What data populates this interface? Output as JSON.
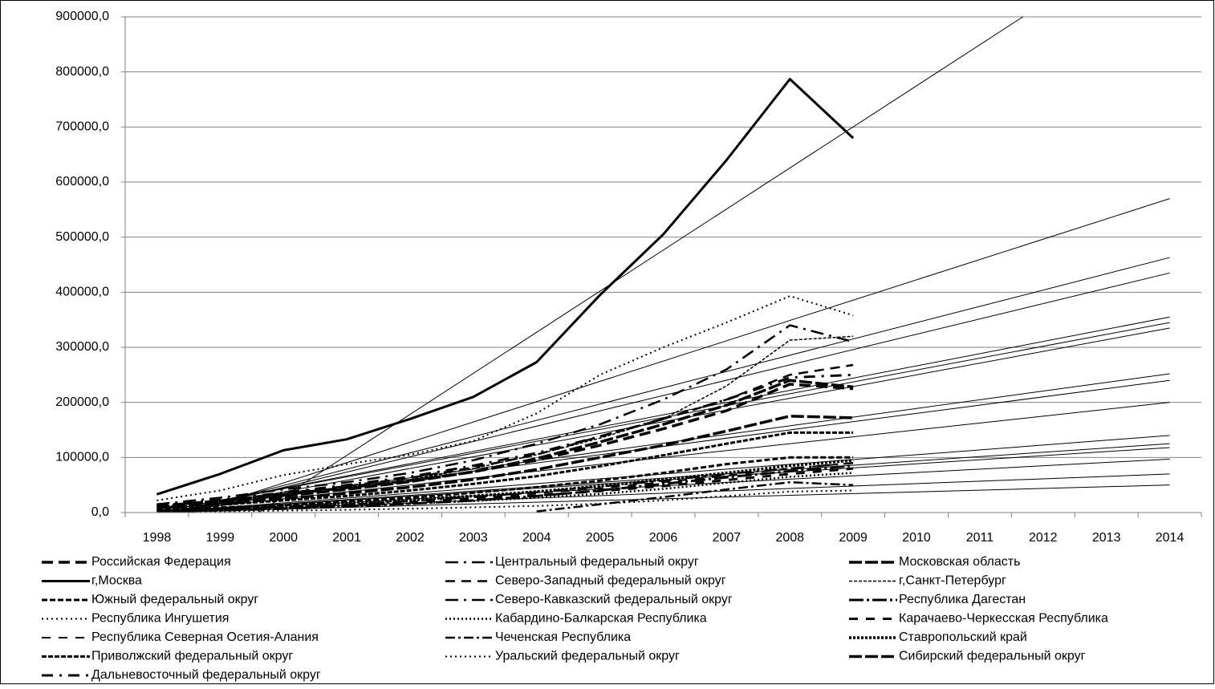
{
  "chart_data": {
    "type": "line",
    "categories": [
      "1998",
      "1999",
      "2000",
      "2001",
      "2002",
      "2003",
      "2004",
      "2005",
      "2006",
      "2007",
      "2008",
      "2009",
      "2010",
      "2011",
      "2012",
      "2013",
      "2014"
    ],
    "ylim": [
      0,
      900000
    ],
    "yticks": [
      {
        "value": 0,
        "label": "0,0"
      },
      {
        "value": 100000,
        "label": "100000,0"
      },
      {
        "value": 200000,
        "label": "200000,0"
      },
      {
        "value": 300000,
        "label": "300000,0"
      },
      {
        "value": 400000,
        "label": "400000,0"
      },
      {
        "value": 500000,
        "label": "500000,0"
      },
      {
        "value": 600000,
        "label": "600000,0"
      },
      {
        "value": 700000,
        "label": "700000,0"
      },
      {
        "value": 800000,
        "label": "800000,0"
      },
      {
        "value": 900000,
        "label": "900000,0"
      }
    ],
    "grid": true,
    "legend": "bottom",
    "series": [
      {
        "name": "Российская Федерация",
        "color": "#000",
        "dash": "14,7",
        "width": 3.5,
        "values": [
          12000,
          21000,
          33000,
          45000,
          58000,
          74000,
          95000,
          122000,
          152000,
          185000,
          233000,
          225000,
          null,
          null,
          null,
          null,
          null
        ]
      },
      {
        "name": "Центральный федеральный округ",
        "color": "#000",
        "dash": "16,7,3,7",
        "width": 2.5,
        "values": [
          15000,
          27000,
          42000,
          55000,
          72000,
          95000,
          125000,
          160000,
          205000,
          260000,
          340000,
          310000,
          null,
          null,
          null,
          null,
          null
        ]
      },
      {
        "name": "Московская область",
        "color": "#000",
        "dash": "16,4",
        "width": 3.5,
        "values": [
          10000,
          18000,
          30000,
          42000,
          56000,
          74000,
          98000,
          128000,
          160000,
          195000,
          240000,
          228000,
          null,
          null,
          null,
          null,
          null
        ]
      },
      {
        "name": "г,Москва",
        "color": "#000",
        "dash": "",
        "width": 3,
        "values": [
          33000,
          70000,
          113000,
          133000,
          170000,
          210000,
          273000,
          395000,
          505000,
          640000,
          787000,
          680000,
          null,
          null,
          null,
          null,
          null
        ]
      },
      {
        "name": "Северо-Западный федеральный округ",
        "color": "#000",
        "dash": "12,8",
        "width": 2.5,
        "values": [
          12000,
          22000,
          35000,
          48000,
          63000,
          82000,
          105000,
          138000,
          170000,
          205000,
          250000,
          268000,
          null,
          null,
          null,
          null,
          null
        ]
      },
      {
        "name": "г,Санкт-Петербург",
        "color": "#000",
        "dash": "4,2",
        "width": 1.5,
        "values": [
          10000,
          20000,
          32000,
          45000,
          60000,
          80000,
          105000,
          135000,
          170000,
          230000,
          313000,
          320000,
          null,
          null,
          null,
          null,
          null
        ]
      },
      {
        "name": "Южный федеральный округ",
        "color": "#000",
        "dash": "7,3",
        "width": 3,
        "values": [
          5000,
          9000,
          14000,
          20000,
          27000,
          36000,
          46000,
          58000,
          72000,
          88000,
          100000,
          100000,
          null,
          null,
          null,
          null,
          null
        ]
      },
      {
        "name": "Северо-Кавказский федеральный округ",
        "color": "#000",
        "dash": "16,7,3,7",
        "width": 2.5,
        "values": [
          3000,
          6000,
          10000,
          15000,
          21000,
          28000,
          37000,
          47000,
          58000,
          70000,
          80000,
          90000,
          null,
          null,
          null,
          null,
          null
        ]
      },
      {
        "name": "Республика Дагестан",
        "color": "#000",
        "dash": "18,4,3,4",
        "width": 3,
        "values": [
          2000,
          4000,
          7000,
          11000,
          16000,
          22000,
          30000,
          40000,
          52000,
          64000,
          75000,
          85000,
          null,
          null,
          null,
          null,
          null
        ]
      },
      {
        "name": "Республика Ингушетия",
        "color": "#000",
        "dash": "2,4",
        "width": 2,
        "values": [
          1000,
          2000,
          3500,
          5000,
          7000,
          9500,
          12000,
          16000,
          22000,
          30000,
          38000,
          40000,
          null,
          null,
          null,
          null,
          null
        ]
      },
      {
        "name": "Кабардино-Балкарская Республика",
        "color": "#000",
        "dash": "2,3",
        "width": 2.5,
        "values": [
          2500,
          5000,
          8000,
          12000,
          16000,
          21000,
          27000,
          34000,
          43000,
          54000,
          65000,
          72000,
          null,
          null,
          null,
          null,
          null
        ]
      },
      {
        "name": "Карачаево-Черкесская Республика",
        "color": "#000",
        "dash": "11,10",
        "width": 3,
        "values": [
          3000,
          6000,
          9000,
          13000,
          18000,
          24000,
          31000,
          39000,
          48000,
          59000,
          70000,
          80000,
          null,
          null,
          null,
          null,
          null
        ]
      },
      {
        "name": "Республика Северная Осетия-Алания",
        "color": "#000",
        "dash": "11,10",
        "width": 2,
        "values": [
          3500,
          6500,
          10000,
          15000,
          20000,
          27000,
          35000,
          44000,
          55000,
          67000,
          80000,
          90000,
          null,
          null,
          null,
          null,
          null
        ]
      },
      {
        "name": "Чеченская Республика",
        "color": "#000",
        "dash": "12,4,3,4",
        "width": 2.5,
        "values": [
          null,
          null,
          null,
          null,
          null,
          null,
          2000,
          15000,
          28000,
          42000,
          55000,
          50000,
          null,
          null,
          null,
          null,
          null
        ]
      },
      {
        "name": "Ставропольский край",
        "color": "#000",
        "dash": "3,2",
        "width": 3.5,
        "values": [
          4000,
          8000,
          12000,
          17000,
          23000,
          30000,
          38000,
          48000,
          60000,
          72000,
          85000,
          95000,
          null,
          null,
          null,
          null,
          null
        ]
      },
      {
        "name": "Приволжский федеральный округ",
        "color": "#000",
        "dash": "6,2",
        "width": 3,
        "values": [
          8000,
          14000,
          22000,
          30000,
          40000,
          52000,
          66000,
          84000,
          104000,
          125000,
          145000,
          145000,
          null,
          null,
          null,
          null,
          null
        ]
      },
      {
        "name": "Уральский федеральный округ",
        "color": "#000",
        "dash": "2,4",
        "width": 2,
        "values": [
          22000,
          40000,
          68000,
          88000,
          105000,
          130000,
          180000,
          250000,
          300000,
          345000,
          393000,
          358000,
          null,
          null,
          null,
          null,
          null
        ]
      },
      {
        "name": "Сибирский федеральный округ",
        "color": "#000",
        "dash": "16,4",
        "width": 3.5,
        "values": [
          9000,
          16000,
          25000,
          35000,
          46000,
          60000,
          78000,
          100000,
          122000,
          148000,
          175000,
          172000,
          null,
          null,
          null,
          null,
          null
        ]
      },
      {
        "name": "Дальневосточный федеральный округ",
        "color": "#000",
        "dash": "14,8,3,8",
        "width": 3,
        "values": [
          13000,
          23000,
          36000,
          50000,
          65000,
          85000,
          108000,
          138000,
          170000,
          205000,
          245000,
          250000,
          null,
          null,
          null,
          null,
          null
        ]
      }
    ],
    "trend_lines": [
      {
        "start": -120000,
        "end": 1073000
      },
      {
        "start": -20000,
        "end": 570000
      },
      {
        "start": -10000,
        "end": 463000
      },
      {
        "start": -10000,
        "end": 435000
      },
      {
        "start": 0,
        "end": 355000
      },
      {
        "start": 0,
        "end": 345000
      },
      {
        "start": -5000,
        "end": 335000
      },
      {
        "start": 0,
        "end": 252000
      },
      {
        "start": 0,
        "end": 240000
      },
      {
        "start": 0,
        "end": 200000
      },
      {
        "start": 0,
        "end": 140000
      },
      {
        "start": 0,
        "end": 125000
      },
      {
        "start": 0,
        "end": 118000
      },
      {
        "start": 0,
        "end": 97000
      },
      {
        "start": 0,
        "end": 70000
      },
      {
        "start": 0,
        "end": 50000
      }
    ]
  }
}
